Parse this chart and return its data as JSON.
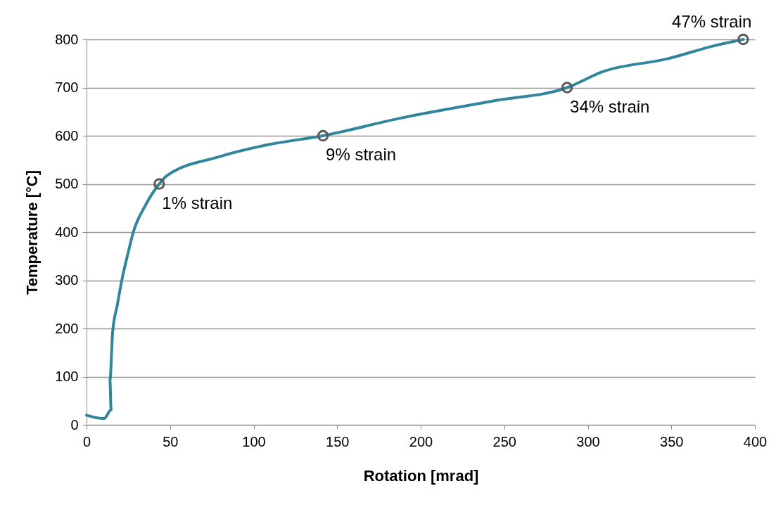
{
  "chart_data": {
    "type": "line",
    "xlabel": "Rotation [mrad]",
    "ylabel": "Temperature [°C]",
    "xlim": [
      0,
      400
    ],
    "xticks": [
      0,
      50,
      100,
      150,
      200,
      250,
      300,
      350,
      400
    ],
    "ylim": [
      0,
      800
    ],
    "yticks": [
      0,
      100,
      200,
      300,
      400,
      500,
      600,
      700,
      800
    ],
    "grid": "y",
    "line_style": "solid",
    "series": [
      {
        "color": "#31859c",
        "marker": "none",
        "x": [
          0,
          10.5,
          14.7,
          14,
          15.6,
          18.5,
          21,
          24.8,
          28,
          35,
          43.5,
          48,
          79,
          109.5,
          141.5,
          187,
          243,
          287.6,
          309,
          348,
          376,
          393
        ],
        "values": [
          20,
          13,
          31,
          93,
          191,
          250,
          298,
          356,
          400,
          454,
          500,
          517,
          556,
          582,
          600,
          636,
          672,
          700,
          733,
          760,
          787,
          800
        ]
      },
      {
        "type": "scatter",
        "color": "#595959",
        "marker": "circle",
        "x": [
          43.5,
          141.5,
          287.6,
          393
        ],
        "values": [
          500,
          600,
          700,
          800
        ]
      }
    ],
    "annotations": [
      {
        "text": "1% strain",
        "x": 43.5,
        "y": 500
      },
      {
        "text": "9% strain",
        "x": 141.5,
        "y": 600
      },
      {
        "text": "34% strain",
        "x": 287.6,
        "y": 700
      },
      {
        "text": "47% strain",
        "x": 393,
        "y": 800
      }
    ]
  }
}
